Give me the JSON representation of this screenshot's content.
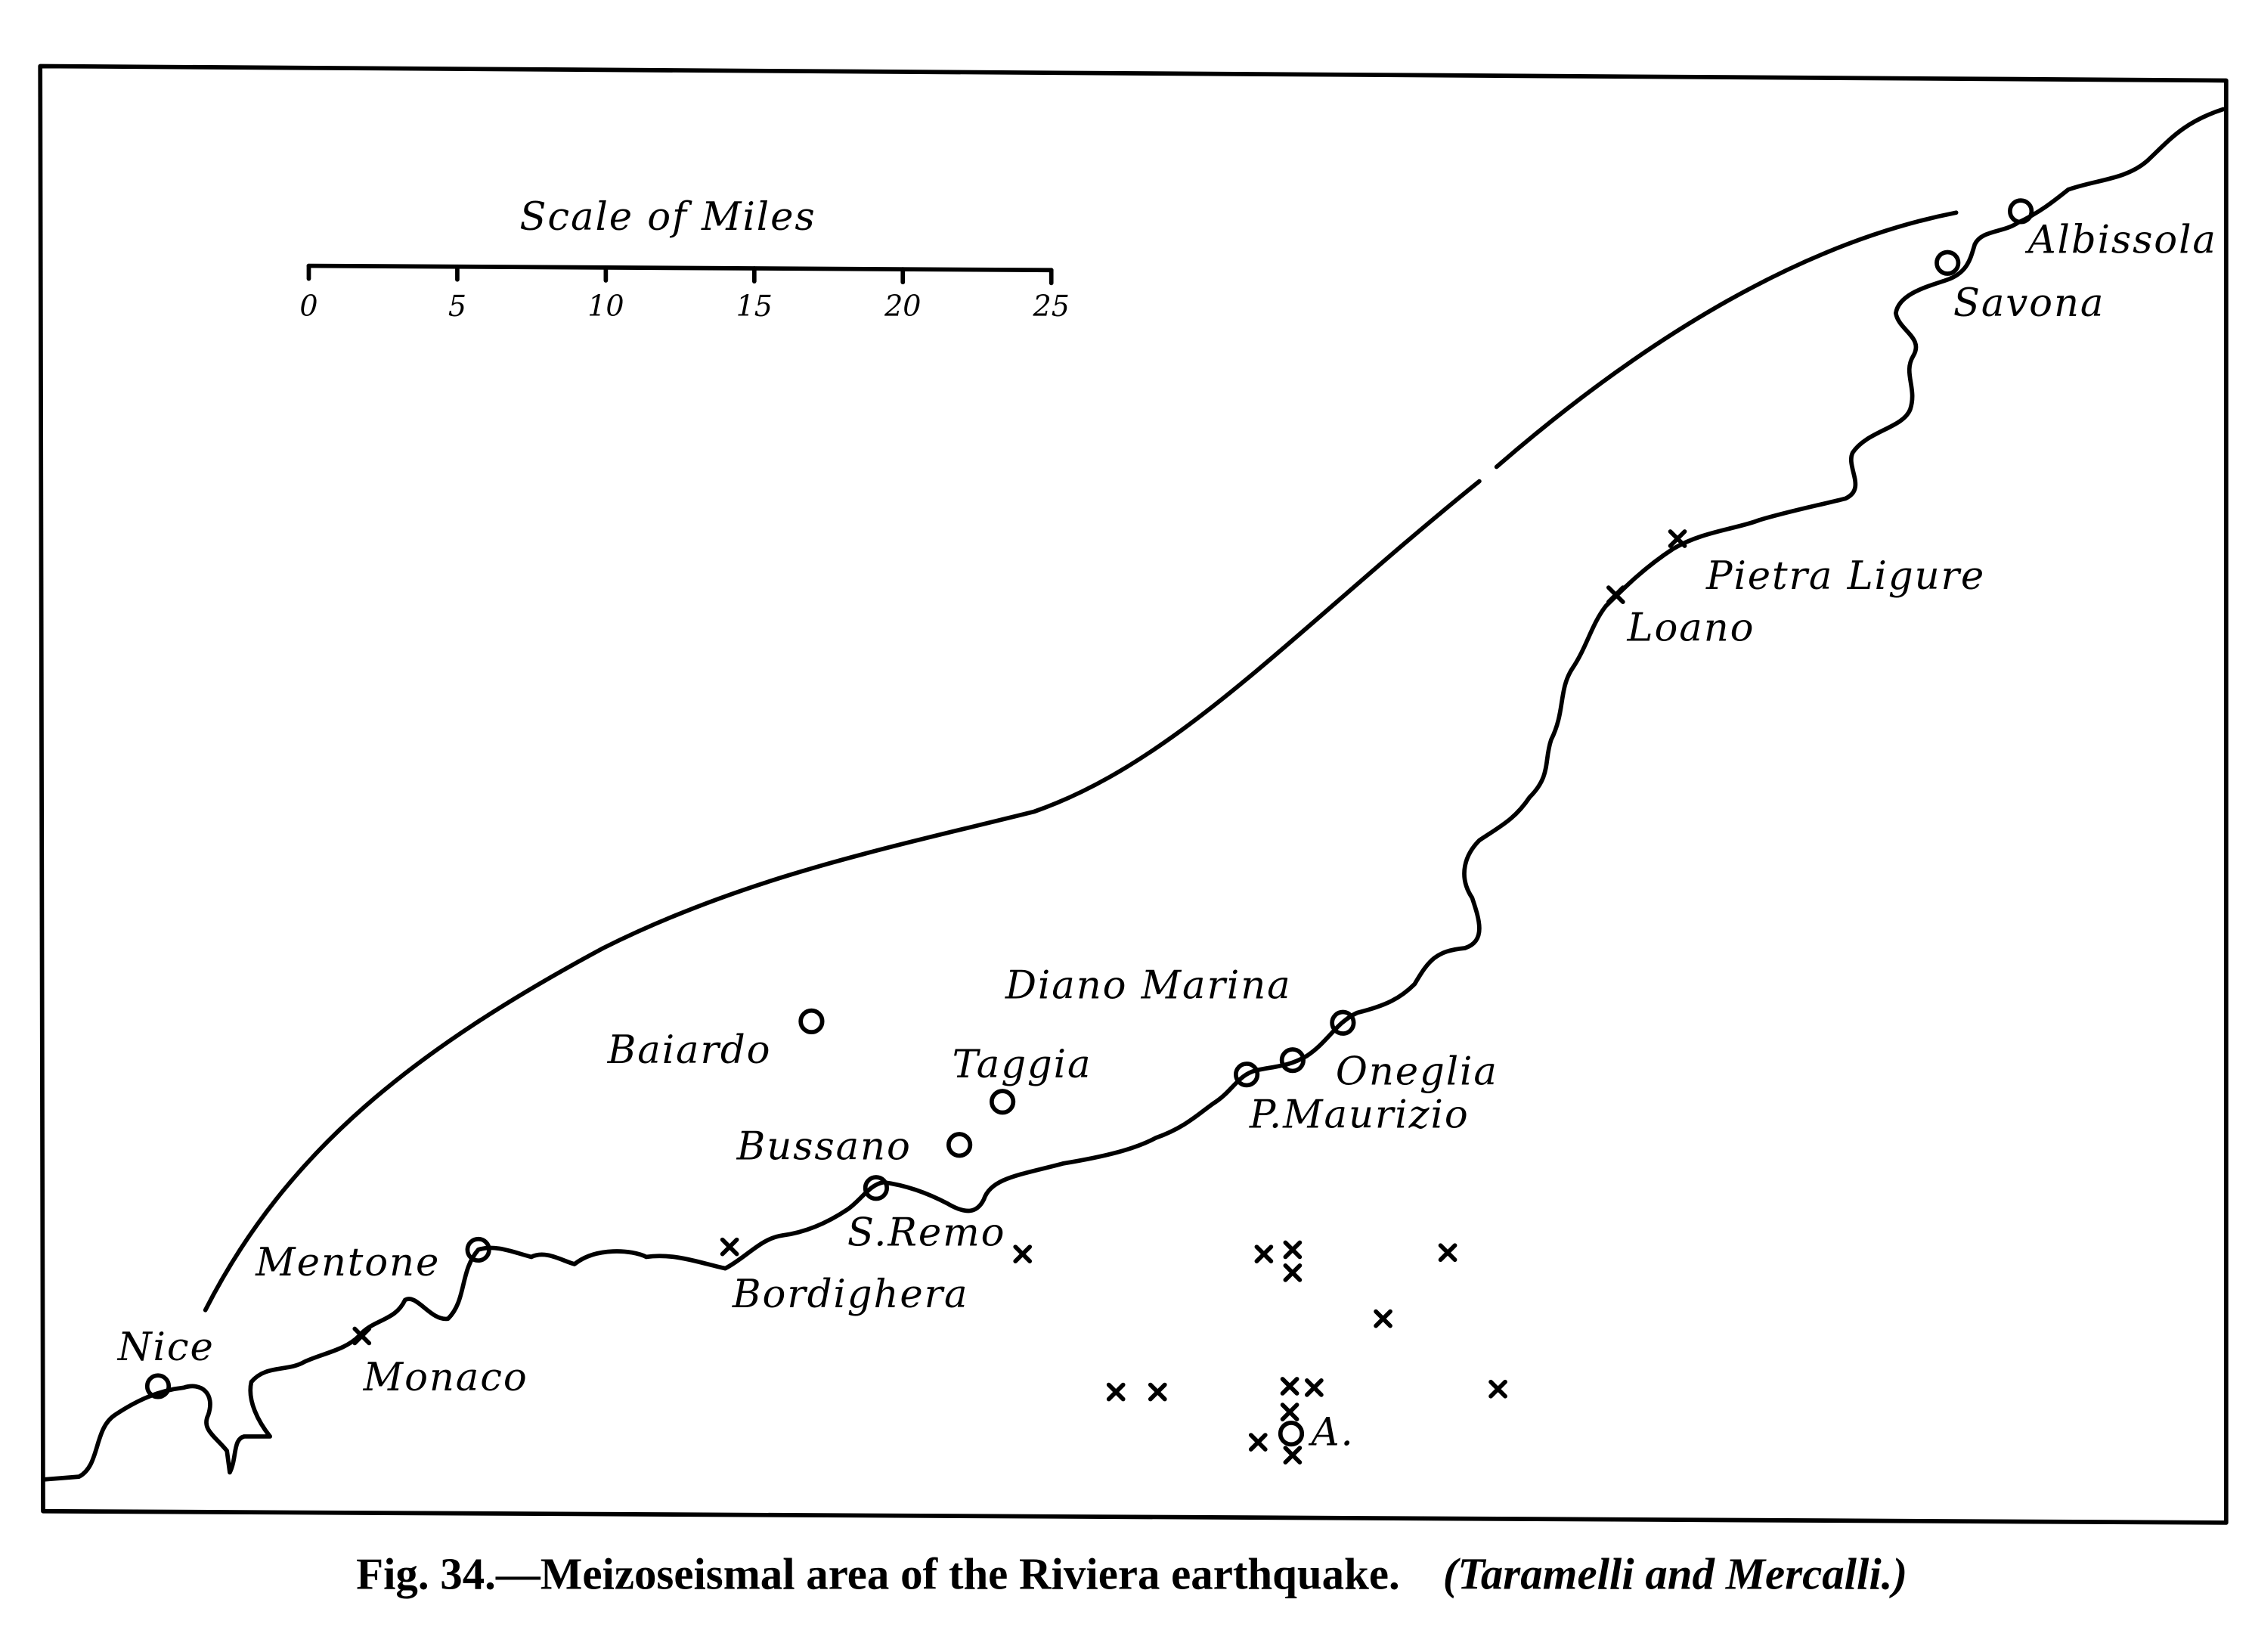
{
  "scale": {
    "title": "Scale of Miles",
    "ticks": [
      "0",
      "5",
      "10",
      "15",
      "20",
      "25"
    ]
  },
  "places": {
    "albissola": "Albissola",
    "savona": "Savona",
    "pietra_ligure": "Pietra Ligure",
    "loano": "Loano",
    "diano_marina": "Diano Marina",
    "oneglia": "Oneglia",
    "p_maurizio": "P.Maurizio",
    "taggia": "Taggia",
    "baiardo": "Baiardo",
    "bussano": "Bussano",
    "s_remo": "S.Remo",
    "bordighera": "Bordighera",
    "mentone": "Mentone",
    "monaco": "Monaco",
    "nice": "Nice",
    "epicentre": "A."
  },
  "caption": {
    "figure": "Fig. 34.",
    "text": "—Meizoseismal area of the Riviera earthquake.",
    "credit": "(Taramelli and Mercalli.)"
  }
}
